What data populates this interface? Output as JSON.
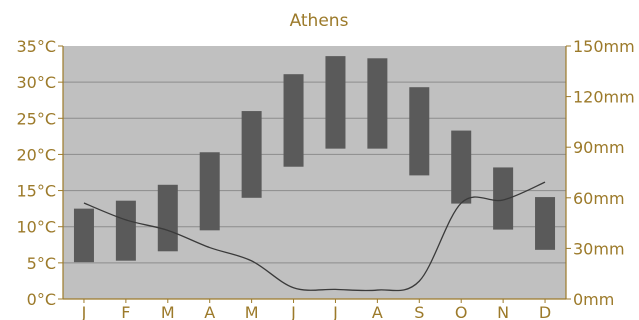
{
  "chart_data": {
    "type": "bar",
    "title": "Athens",
    "categories": [
      "J",
      "F",
      "M",
      "A",
      "M",
      "J",
      "J",
      "A",
      "S",
      "O",
      "N",
      "D"
    ],
    "temperature_range": {
      "unit": "°C",
      "low": [
        5.1,
        5.3,
        6.6,
        9.5,
        14.0,
        18.3,
        20.8,
        20.8,
        17.1,
        13.2,
        9.6,
        6.8
      ],
      "high": [
        12.5,
        13.6,
        15.8,
        20.3,
        26.0,
        31.1,
        33.6,
        33.3,
        29.3,
        23.3,
        18.2,
        14.1
      ]
    },
    "precipitation": {
      "unit": "mm",
      "values": [
        56.9,
        46.9,
        40.7,
        30.5,
        22.6,
        6.7,
        5.7,
        5.3,
        10.6,
        56.9,
        58.7,
        69.3
      ]
    },
    "y_left": {
      "range": [
        0,
        35
      ],
      "ticks": [
        "0°C",
        "5°C",
        "10°C",
        "15°C",
        "20°C",
        "25°C",
        "30°C",
        "35°C"
      ]
    },
    "y_right": {
      "range": [
        0,
        150
      ],
      "ticks": [
        "0mm",
        "30mm",
        "60mm",
        "90mm",
        "120mm",
        "150mm"
      ]
    },
    "grid": true,
    "legend": "none",
    "colors": {
      "plot_background": "#c0c0c0",
      "bar": "#5a5a5a",
      "line": "#3a3a3a",
      "gridline": "#8c8c8c",
      "text": "#9c7a2a"
    }
  }
}
